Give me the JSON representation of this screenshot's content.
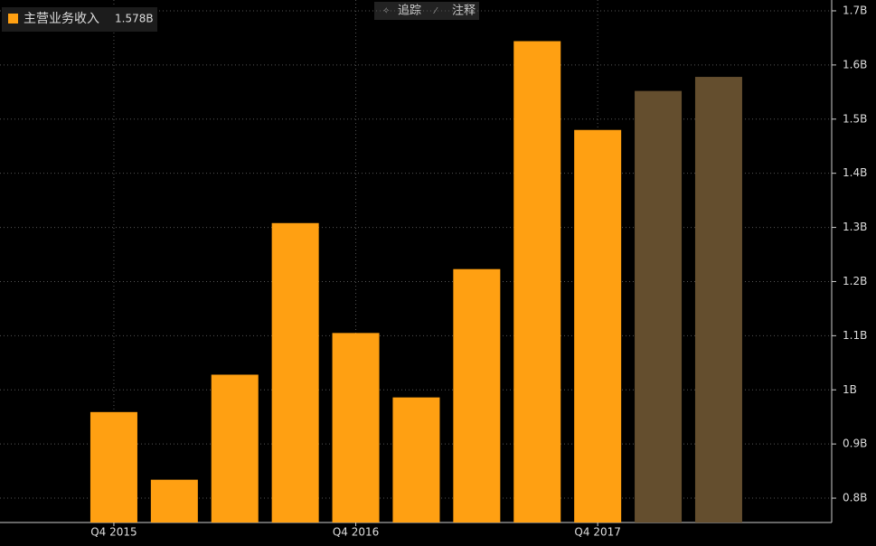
{
  "buttons": [
    "追踪",
    "注释"
  ],
  "chart_data": {
    "type": "bar",
    "categories": [
      "Q4 2015",
      null,
      null,
      null,
      "Q4 2016",
      null,
      null,
      null,
      "Q4 2017",
      null,
      null
    ],
    "series": [
      {
        "name": "主营业务收入",
        "color": "#ffa012",
        "colors": [
          "#ffa012",
          "#ffa012",
          "#ffa012",
          "#ffa012",
          "#ffa012",
          "#ffa012",
          "#ffa012",
          "#ffa012",
          "#ffa012",
          "#644e2e",
          "#644e2e"
        ],
        "values": [
          0.959,
          0.834,
          1.028,
          1.308,
          1.105,
          0.986,
          1.223,
          1.644,
          1.48,
          1.552,
          1.578
        ],
        "legend_value_label": "1.578B"
      }
    ],
    "ylim": [
      0.755,
      1.72
    ],
    "yticks": [
      {
        "value": 0.8,
        "label": "0.8B"
      },
      {
        "value": 0.9,
        "label": "0.9B"
      },
      {
        "value": 1,
        "label": "1B"
      },
      {
        "value": 1.1,
        "label": "1.1B"
      },
      {
        "value": 1.2,
        "label": "1.2B"
      },
      {
        "value": 1.3,
        "label": "1.3B"
      },
      {
        "value": 1.4,
        "label": "1.4B"
      },
      {
        "value": 1.5,
        "label": "1.5B"
      },
      {
        "value": 1.6,
        "label": "1.6B"
      },
      {
        "value": 1.7,
        "label": "1.7B"
      }
    ],
    "grid": true,
    "legend": "top-left"
  }
}
